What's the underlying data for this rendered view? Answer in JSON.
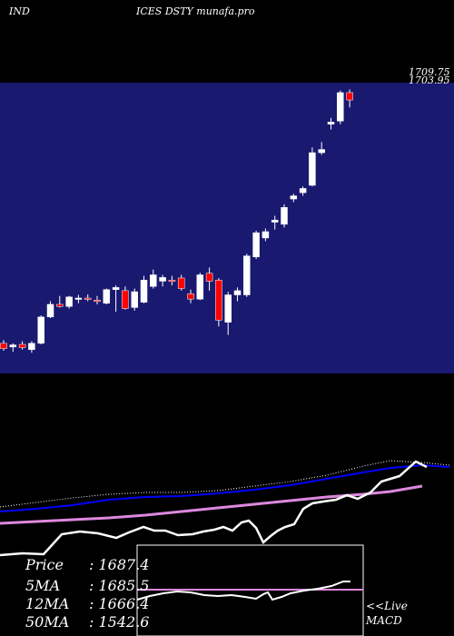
{
  "header": {
    "left": "IND",
    "right": "ICES DSTY munafa.pro"
  },
  "price_labels": [
    "1709.75",
    "1703.95"
  ],
  "stats": [
    {
      "label": "Price",
      "value": "1687.4"
    },
    {
      "label": "5MA",
      "value": "1685.5"
    },
    {
      "label": "12MA",
      "value": "1666.4"
    },
    {
      "label": "50MA",
      "value": "1542.6"
    }
  ],
  "macd": {
    "line1": "<<Live",
    "line2": "MACD"
  },
  "colors": {
    "panel_bg": "#191970",
    "up": "#ffffff",
    "down": "#ff0000",
    "ma_line": "#ffffff",
    "ma_mid": "#0000ff",
    "ma_long": "#dd88dd",
    "dotted": "#ffffff"
  },
  "chart_data": {
    "type": "candlestick",
    "ylim": [
      1180,
      1720
    ],
    "candles": [
      {
        "o": 1232,
        "h": 1238,
        "l": 1218,
        "c": 1222
      },
      {
        "o": 1225,
        "h": 1232,
        "l": 1216,
        "c": 1229
      },
      {
        "o": 1230,
        "h": 1236,
        "l": 1220,
        "c": 1224
      },
      {
        "o": 1220,
        "h": 1236,
        "l": 1214,
        "c": 1232
      },
      {
        "o": 1232,
        "h": 1285,
        "l": 1230,
        "c": 1282
      },
      {
        "o": 1282,
        "h": 1312,
        "l": 1280,
        "c": 1306
      },
      {
        "o": 1306,
        "h": 1322,
        "l": 1300,
        "c": 1302
      },
      {
        "o": 1302,
        "h": 1322,
        "l": 1298,
        "c": 1320
      },
      {
        "o": 1316,
        "h": 1324,
        "l": 1308,
        "c": 1318
      },
      {
        "o": 1318,
        "h": 1325,
        "l": 1312,
        "c": 1316
      },
      {
        "o": 1314,
        "h": 1322,
        "l": 1306,
        "c": 1312
      },
      {
        "o": 1308,
        "h": 1336,
        "l": 1306,
        "c": 1334
      },
      {
        "o": 1334,
        "h": 1342,
        "l": 1292,
        "c": 1338
      },
      {
        "o": 1332,
        "h": 1340,
        "l": 1296,
        "c": 1298
      },
      {
        "o": 1300,
        "h": 1336,
        "l": 1294,
        "c": 1330
      },
      {
        "o": 1310,
        "h": 1360,
        "l": 1308,
        "c": 1352
      },
      {
        "o": 1340,
        "h": 1372,
        "l": 1336,
        "c": 1362
      },
      {
        "o": 1350,
        "h": 1362,
        "l": 1340,
        "c": 1357
      },
      {
        "o": 1352,
        "h": 1360,
        "l": 1342,
        "c": 1350
      },
      {
        "o": 1356,
        "h": 1362,
        "l": 1332,
        "c": 1336
      },
      {
        "o": 1326,
        "h": 1334,
        "l": 1308,
        "c": 1316
      },
      {
        "o": 1316,
        "h": 1366,
        "l": 1314,
        "c": 1362
      },
      {
        "o": 1365,
        "h": 1376,
        "l": 1332,
        "c": 1350
      },
      {
        "o": 1352,
        "h": 1356,
        "l": 1264,
        "c": 1276
      },
      {
        "o": 1272,
        "h": 1330,
        "l": 1248,
        "c": 1324
      },
      {
        "o": 1324,
        "h": 1338,
        "l": 1312,
        "c": 1332
      },
      {
        "o": 1324,
        "h": 1402,
        "l": 1320,
        "c": 1398
      },
      {
        "o": 1396,
        "h": 1446,
        "l": 1392,
        "c": 1442
      },
      {
        "o": 1432,
        "h": 1450,
        "l": 1426,
        "c": 1444
      },
      {
        "o": 1462,
        "h": 1474,
        "l": 1448,
        "c": 1466
      },
      {
        "o": 1458,
        "h": 1496,
        "l": 1452,
        "c": 1490
      },
      {
        "o": 1506,
        "h": 1516,
        "l": 1500,
        "c": 1512
      },
      {
        "o": 1518,
        "h": 1530,
        "l": 1512,
        "c": 1526
      },
      {
        "o": 1532,
        "h": 1604,
        "l": 1530,
        "c": 1594
      },
      {
        "o": 1594,
        "h": 1614,
        "l": 1590,
        "c": 1600
      },
      {
        "o": 1648,
        "h": 1660,
        "l": 1638,
        "c": 1652
      },
      {
        "o": 1654,
        "h": 1712,
        "l": 1648,
        "c": 1708
      },
      {
        "o": 1708,
        "h": 1714,
        "l": 1680,
        "c": 1694
      }
    ]
  }
}
